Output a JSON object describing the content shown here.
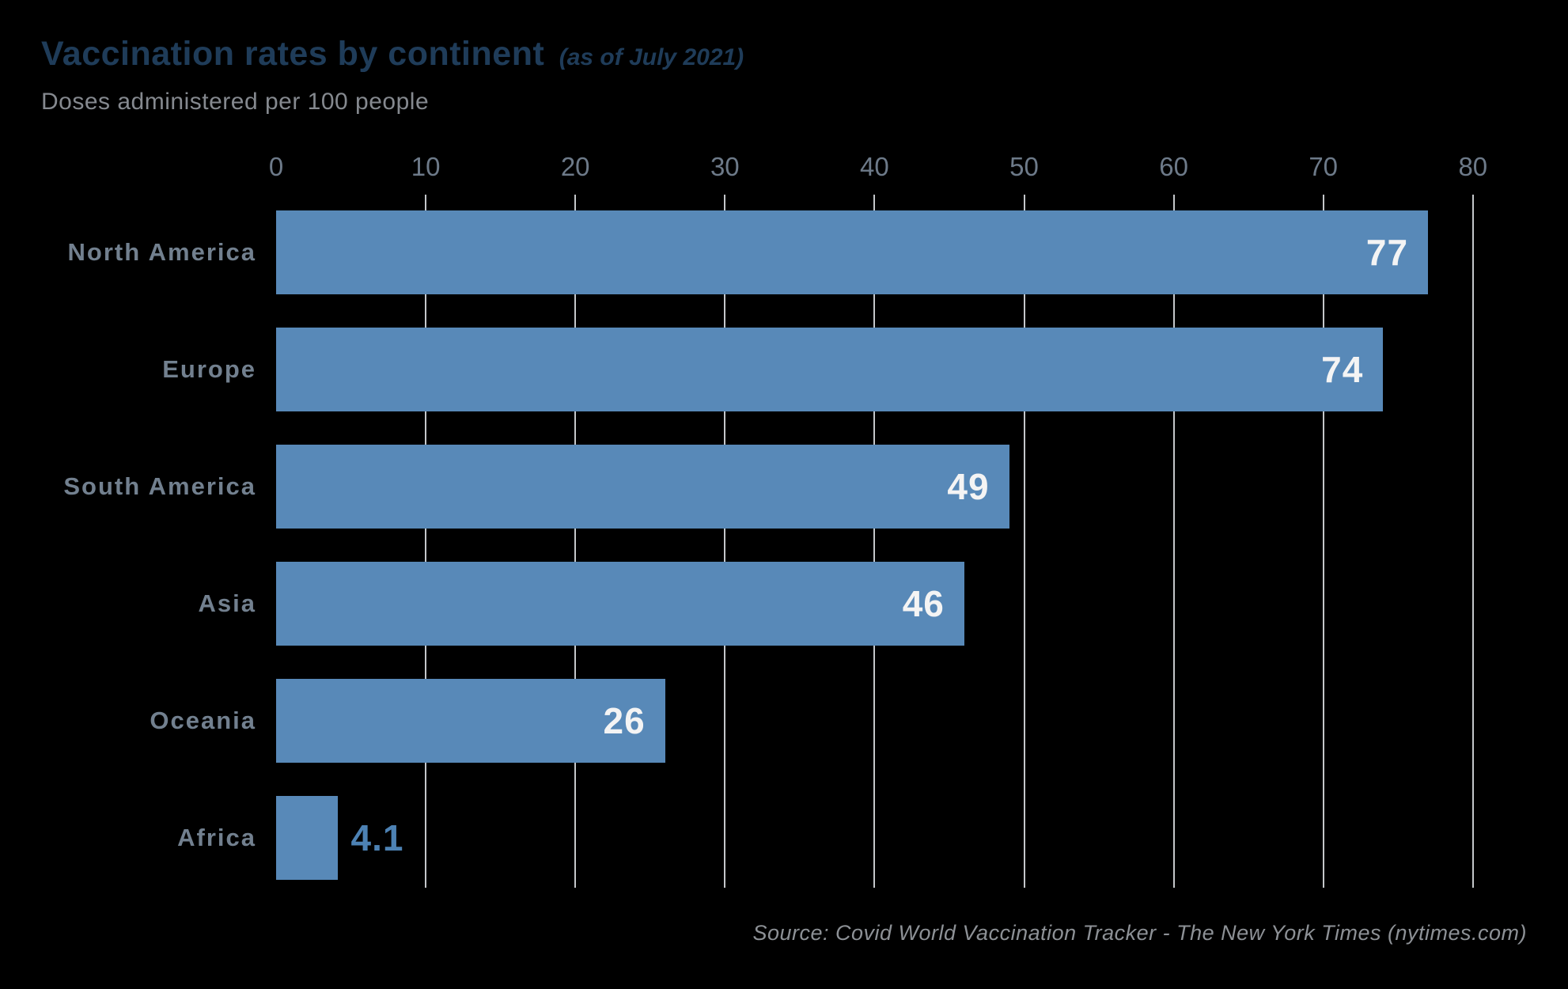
{
  "header": {
    "title": "Vaccination rates by continent",
    "title_suffix": "(as of July 2021)",
    "subtitle": "Doses administered per 100 people"
  },
  "footer": {
    "source": "Source: Covid World Vaccination Tracker - The New York Times (nytimes.com)"
  },
  "colors": {
    "background": "#000000",
    "bar": "#5889b8",
    "title": "#1f3c59",
    "subtitle": "#85898f",
    "axis_tick_label": "#6d7a89",
    "category_label": "#72808f",
    "value_label_inside": "#f4f4f4",
    "value_label_outside": "#4d82b4",
    "gridline": "#c4c7ca",
    "source_text": "#8d9196"
  },
  "chart_data": {
    "type": "bar",
    "orientation": "horizontal",
    "title": "Vaccination rates by continent (as of July 2021)",
    "value_axis_label": "Doses administered per 100 people",
    "categories": [
      "North America",
      "Europe",
      "South America",
      "Asia",
      "Oceania",
      "Africa"
    ],
    "values": [
      77,
      74,
      49,
      46,
      26,
      4.1
    ],
    "value_labels": [
      "77",
      "74",
      "49",
      "46",
      "26",
      "4.1"
    ],
    "xlim": [
      0,
      80
    ],
    "xticks": [
      0,
      10,
      20,
      30,
      40,
      50,
      60,
      70,
      80
    ],
    "grid": true,
    "gridline_at_zero": false,
    "legend": false,
    "value_labels_placement": "inside-end (outside for Africa)"
  }
}
